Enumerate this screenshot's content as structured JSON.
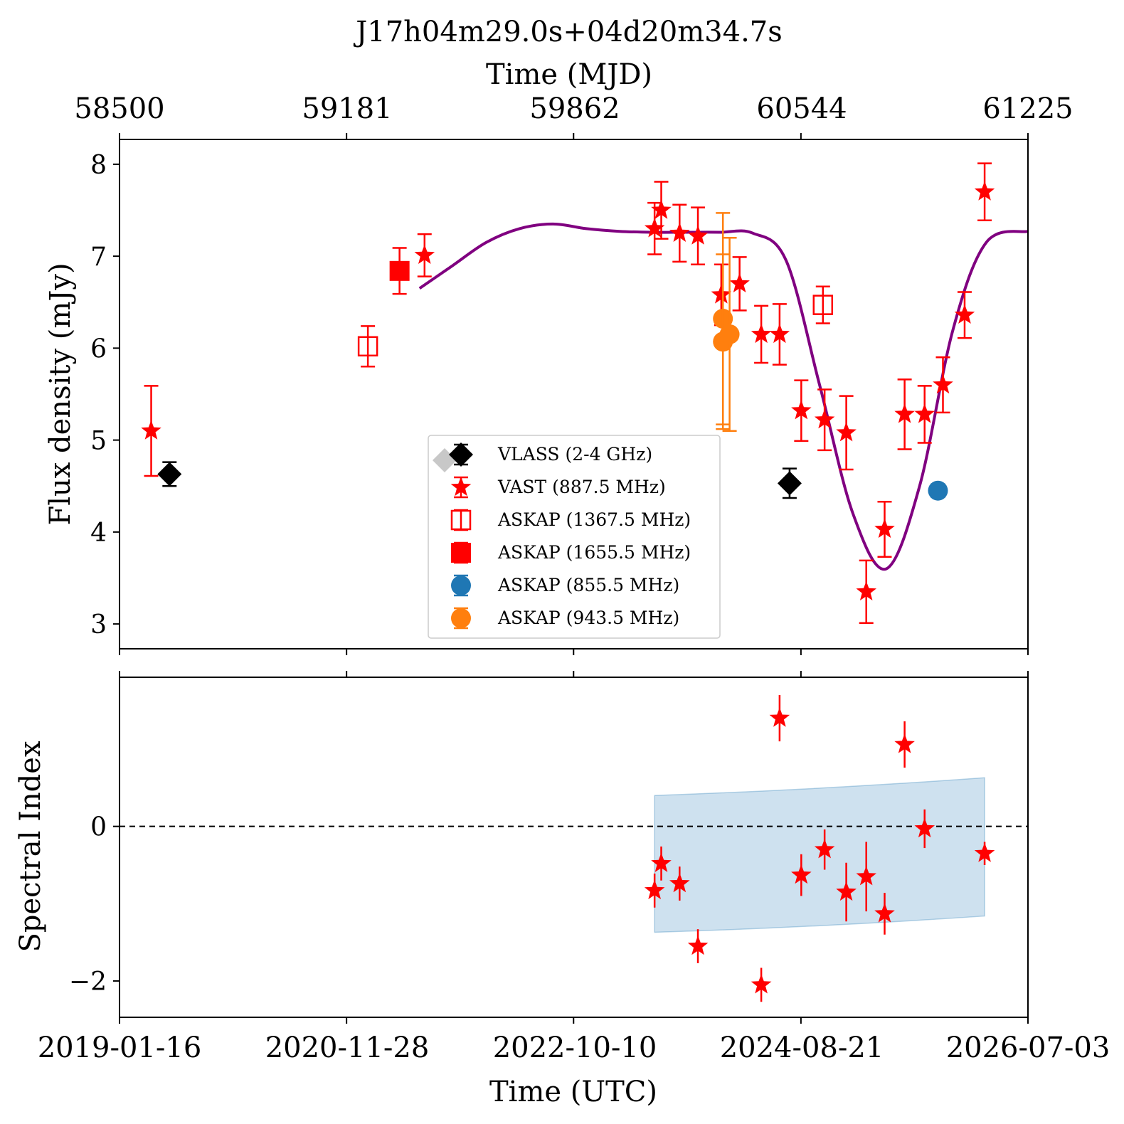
{
  "chart_data": {
    "type": "scatter",
    "title": "J17h04m29.0s+04d20m34.7s",
    "top_axis": {
      "label": "Time (MJD)",
      "tick_labels": [
        "58500",
        "59181",
        "59862",
        "60544",
        "61225"
      ]
    },
    "bottom_axis": {
      "label": "Time (UTC)",
      "tick_labels": [
        "2019-01-16",
        "2020-11-28",
        "2022-10-10",
        "2024-08-21",
        "2026-07-03"
      ]
    },
    "xlim_mjd": [
      58500,
      61225
    ],
    "panels": [
      {
        "name": "flux",
        "ylabel": "Flux density (mJy)",
        "ylim": [
          2.73,
          8.27
        ],
        "yticks": [
          3,
          4,
          5,
          6,
          7,
          8
        ],
        "legend": "lower-center",
        "series": [
          {
            "name": "VLASS (2-4 GHz)",
            "marker": "diamond",
            "color": "#000000",
            "points": [
              {
                "x": 58650,
                "y": 4.63,
                "err": 0.13
              },
              {
                "x": 60510,
                "y": 4.53,
                "err": 0.16
              }
            ]
          },
          {
            "name": "VAST (887.5 MHz)",
            "marker": "star",
            "color": "#ff0000",
            "points": [
              {
                "x": 58595,
                "y": 5.1,
                "err": 0.49
              },
              {
                "x": 59415,
                "y": 7.01,
                "err": 0.23
              },
              {
                "x": 60105,
                "y": 7.3,
                "err": 0.28
              },
              {
                "x": 60125,
                "y": 7.5,
                "err": 0.31
              },
              {
                "x": 60180,
                "y": 7.25,
                "err": 0.31
              },
              {
                "x": 60235,
                "y": 7.22,
                "err": 0.31
              },
              {
                "x": 60305,
                "y": 6.58,
                "err": 0.33
              },
              {
                "x": 60360,
                "y": 6.7,
                "err": 0.29
              },
              {
                "x": 60425,
                "y": 6.15,
                "err": 0.31
              },
              {
                "x": 60480,
                "y": 6.15,
                "err": 0.33
              },
              {
                "x": 60545,
                "y": 5.32,
                "err": 0.33
              },
              {
                "x": 60615,
                "y": 5.22,
                "err": 0.33
              },
              {
                "x": 60680,
                "y": 5.08,
                "err": 0.4
              },
              {
                "x": 60740,
                "y": 3.35,
                "err": 0.34
              },
              {
                "x": 60795,
                "y": 4.03,
                "err": 0.3
              },
              {
                "x": 60855,
                "y": 5.28,
                "err": 0.38
              },
              {
                "x": 60915,
                "y": 5.28,
                "err": 0.31
              },
              {
                "x": 60970,
                "y": 5.6,
                "err": 0.3
              },
              {
                "x": 61035,
                "y": 6.36,
                "err": 0.25
              },
              {
                "x": 61095,
                "y": 7.7,
                "err": 0.31
              }
            ]
          },
          {
            "name": "ASKAP (1367.5 MHz)",
            "marker": "square-open",
            "color": "#ff0000",
            "points": [
              {
                "x": 59245,
                "y": 6.02,
                "err": 0.22
              },
              {
                "x": 60610,
                "y": 6.47,
                "err": 0.2
              }
            ]
          },
          {
            "name": "ASKAP (1655.5 MHz)",
            "marker": "square",
            "color": "#ff0000",
            "points": [
              {
                "x": 59340,
                "y": 6.84,
                "err": 0.25
              }
            ]
          },
          {
            "name": "ASKAP (855.5 MHz)",
            "marker": "circle",
            "color": "#1f77b4",
            "points": [
              {
                "x": 60955,
                "y": 4.45,
                "err": 0.07
              }
            ]
          },
          {
            "name": "ASKAP (943.5 MHz)",
            "marker": "circle",
            "color": "#ff7f0e",
            "points": [
              {
                "x": 60310,
                "y": 6.32,
                "err": 1.15
              },
              {
                "x": 60310,
                "y": 6.07,
                "err": 0.95
              },
              {
                "x": 60330,
                "y": 6.15,
                "err": 1.05
              }
            ]
          }
        ],
        "model_curve": {
          "color": "#800080",
          "points": [
            [
              59400,
              6.65
            ],
            [
              59500,
              6.9
            ],
            [
              59600,
              7.15
            ],
            [
              59700,
              7.3
            ],
            [
              59800,
              7.35
            ],
            [
              59900,
              7.3
            ],
            [
              60000,
              7.27
            ],
            [
              60100,
              7.26
            ],
            [
              60200,
              7.26
            ],
            [
              60300,
              7.26
            ],
            [
              60400,
              7.25
            ],
            [
              60500,
              6.95
            ],
            [
              60600,
              5.6
            ],
            [
              60700,
              4.2
            ],
            [
              60800,
              3.6
            ],
            [
              60900,
              4.5
            ],
            [
              61000,
              6.2
            ],
            [
              61100,
              7.15
            ],
            [
              61225,
              7.27
            ]
          ]
        }
      },
      {
        "name": "spectral-index",
        "ylabel": "Spectral Index",
        "ylim": [
          -2.47,
          1.93
        ],
        "yticks": [
          -2,
          0
        ],
        "reference_line": 0,
        "band": {
          "color": "#1f77b4",
          "x": [
            60105,
            61095
          ],
          "upper": [
            0.4,
            0.63
          ],
          "lower": [
            -1.37,
            -1.16
          ]
        },
        "series": [
          {
            "name": "VAST (887.5 MHz)",
            "marker": "star",
            "color": "#ff0000",
            "points": [
              {
                "x": 60105,
                "y": -0.83,
                "err": 0.22
              },
              {
                "x": 60125,
                "y": -0.48,
                "err": 0.22
              },
              {
                "x": 60180,
                "y": -0.74,
                "err": 0.22
              },
              {
                "x": 60235,
                "y": -1.55,
                "err": 0.22
              },
              {
                "x": 60425,
                "y": -2.05,
                "err": 0.22
              },
              {
                "x": 60480,
                "y": 1.4,
                "err": 0.3
              },
              {
                "x": 60545,
                "y": -0.63,
                "err": 0.27
              },
              {
                "x": 60615,
                "y": -0.3,
                "err": 0.26
              },
              {
                "x": 60680,
                "y": -0.85,
                "err": 0.38
              },
              {
                "x": 60740,
                "y": -0.65,
                "err": 0.45
              },
              {
                "x": 60795,
                "y": -1.13,
                "err": 0.27
              },
              {
                "x": 60855,
                "y": 1.06,
                "err": 0.3
              },
              {
                "x": 60915,
                "y": -0.03,
                "err": 0.25
              },
              {
                "x": 61095,
                "y": -0.35,
                "err": 0.15
              }
            ]
          }
        ]
      }
    ]
  }
}
